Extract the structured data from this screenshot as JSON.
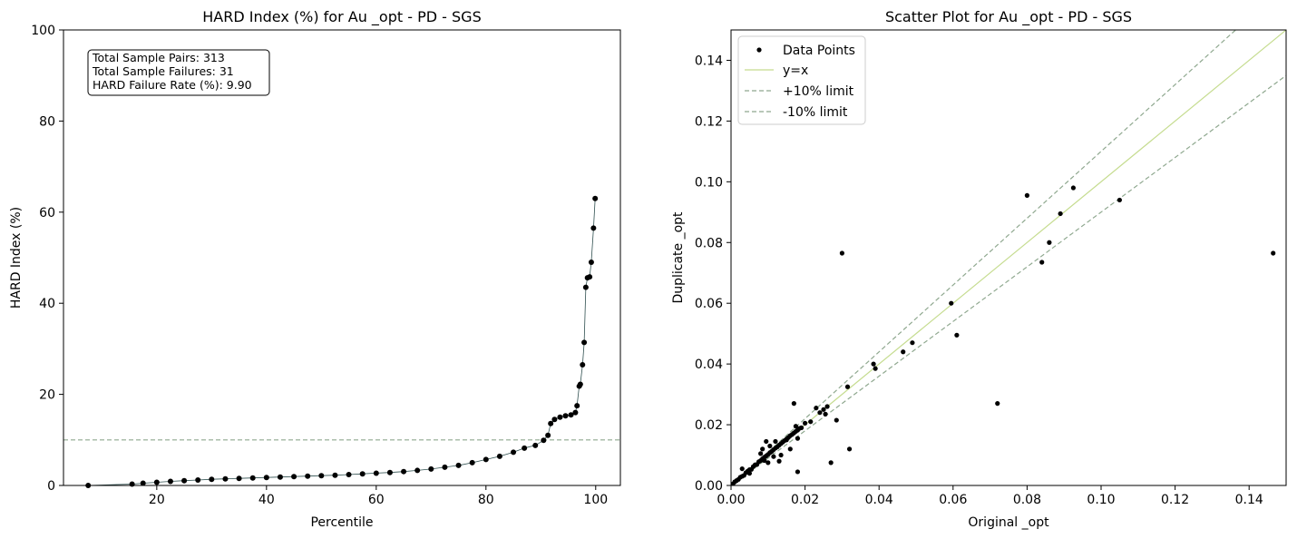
{
  "charts": {
    "hard": {
      "title": "HARD Index (%) for Au _opt - PD - SGS",
      "xlabel": "Percentile",
      "ylabel": "HARD Index (%)",
      "annotation": [
        "Total Sample Pairs: 313",
        "Total Sample Failures: 31",
        "HARD Failure Rate (%): 9.90"
      ]
    },
    "scatter": {
      "title": "Scatter Plot for Au _opt - PD - SGS",
      "xlabel": "Original _opt",
      "ylabel": "Duplicate _opt",
      "legend": [
        "Data Points",
        "y=x",
        "+10% limit",
        "-10% limit"
      ]
    }
  },
  "chart_data": [
    {
      "type": "line",
      "title": "HARD Index (%) for Au _opt - PD - SGS",
      "xlabel": "Percentile",
      "ylabel": "HARD Index (%)",
      "xlim": [
        3,
        104.5
      ],
      "ylim": [
        0,
        100
      ],
      "xticks": [
        "20",
        "40",
        "60",
        "80",
        "100"
      ],
      "xtick_values": [
        20,
        40,
        60,
        80,
        100
      ],
      "yticks": [
        "0",
        "20",
        "40",
        "60",
        "80",
        "100"
      ],
      "ytick_values": [
        0,
        20,
        40,
        60,
        80,
        100
      ],
      "threshold": 10,
      "series_color": "#2f4f4f",
      "marker_color": "#000000",
      "threshold_color": "#8fa88f",
      "points": [
        [
          7.5,
          0.0
        ],
        [
          15.5,
          0.3
        ],
        [
          17.5,
          0.5
        ],
        [
          20.0,
          0.7
        ],
        [
          22.5,
          0.9
        ],
        [
          25.0,
          1.05
        ],
        [
          27.5,
          1.2
        ],
        [
          30.0,
          1.35
        ],
        [
          32.5,
          1.45
        ],
        [
          35.0,
          1.55
        ],
        [
          37.5,
          1.65
        ],
        [
          40.0,
          1.75
        ],
        [
          42.5,
          1.85
        ],
        [
          45.0,
          1.95
        ],
        [
          47.5,
          2.05
        ],
        [
          50.0,
          2.15
        ],
        [
          52.5,
          2.25
        ],
        [
          55.0,
          2.4
        ],
        [
          57.5,
          2.55
        ],
        [
          60.0,
          2.7
        ],
        [
          62.5,
          2.85
        ],
        [
          65.0,
          3.05
        ],
        [
          67.5,
          3.3
        ],
        [
          70.0,
          3.6
        ],
        [
          72.5,
          4.0
        ],
        [
          75.0,
          4.4
        ],
        [
          77.5,
          5.0
        ],
        [
          80.0,
          5.7
        ],
        [
          82.5,
          6.4
        ],
        [
          85.0,
          7.3
        ],
        [
          87.0,
          8.2
        ],
        [
          89.0,
          8.8
        ],
        [
          90.5,
          9.9
        ],
        [
          91.3,
          11.0
        ],
        [
          91.8,
          13.6
        ],
        [
          92.5,
          14.5
        ],
        [
          93.5,
          15.0
        ],
        [
          94.5,
          15.3
        ],
        [
          95.5,
          15.5
        ],
        [
          96.3,
          16.0
        ],
        [
          96.6,
          17.5
        ],
        [
          97.0,
          21.8
        ],
        [
          97.2,
          22.2
        ],
        [
          97.6,
          26.5
        ],
        [
          97.9,
          31.4
        ],
        [
          98.2,
          43.5
        ],
        [
          98.5,
          45.6
        ],
        [
          98.9,
          45.8
        ],
        [
          99.2,
          49.0
        ],
        [
          99.6,
          56.5
        ],
        [
          99.9,
          63.0
        ]
      ]
    },
    {
      "type": "scatter",
      "title": "Scatter Plot for Au _opt - PD - SGS",
      "xlabel": "Original _opt",
      "ylabel": "Duplicate _opt",
      "xlim": [
        0,
        0.15
      ],
      "ylim": [
        0,
        0.15
      ],
      "xticks": [
        "0.00",
        "0.02",
        "0.04",
        "0.06",
        "0.08",
        "0.10",
        "0.12",
        "0.14"
      ],
      "xtick_values": [
        0,
        0.02,
        0.04,
        0.06,
        0.08,
        0.1,
        0.12,
        0.14
      ],
      "yticks": [
        "0.00",
        "0.02",
        "0.04",
        "0.06",
        "0.08",
        "0.10",
        "0.12",
        "0.14"
      ],
      "ytick_values": [
        0,
        0.02,
        0.04,
        0.06,
        0.08,
        0.1,
        0.12,
        0.14
      ],
      "legend_position": "upper-left",
      "reference_lines": [
        {
          "name": "y=x",
          "slope": 1.0,
          "color": "#c5dc8f",
          "dashed": false
        },
        {
          "name": "+10% limit",
          "slope": 1.1,
          "color": "#8fa88f",
          "dashed": true
        },
        {
          "name": "-10% limit",
          "slope": 0.9,
          "color": "#8fa88f",
          "dashed": true
        }
      ],
      "series": [
        {
          "name": "Data Points",
          "color": "#000000",
          "points": [
            [
              0.0005,
              0.0005
            ],
            [
              0.001,
              0.0012
            ],
            [
              0.0015,
              0.0016
            ],
            [
              0.002,
              0.002
            ],
            [
              0.0025,
              0.0027
            ],
            [
              0.003,
              0.003
            ],
            [
              0.0035,
              0.0033
            ],
            [
              0.004,
              0.0042
            ],
            [
              0.0045,
              0.0047
            ],
            [
              0.005,
              0.0052
            ],
            [
              0.0055,
              0.0053
            ],
            [
              0.006,
              0.0062
            ],
            [
              0.0065,
              0.0068
            ],
            [
              0.007,
              0.0069
            ],
            [
              0.0075,
              0.0078
            ],
            [
              0.008,
              0.0082
            ],
            [
              0.0085,
              0.0088
            ],
            [
              0.009,
              0.0093
            ],
            [
              0.0095,
              0.0097
            ],
            [
              0.01,
              0.0102
            ],
            [
              0.0105,
              0.0108
            ],
            [
              0.011,
              0.0112
            ],
            [
              0.0115,
              0.0118
            ],
            [
              0.012,
              0.0123
            ],
            [
              0.0125,
              0.0127
            ],
            [
              0.013,
              0.0133
            ],
            [
              0.0135,
              0.0138
            ],
            [
              0.014,
              0.0143
            ],
            [
              0.0145,
              0.0148
            ],
            [
              0.015,
              0.0153
            ],
            [
              0.0155,
              0.0158
            ],
            [
              0.016,
              0.0164
            ],
            [
              0.0165,
              0.0168
            ],
            [
              0.017,
              0.0173
            ],
            [
              0.0175,
              0.0178
            ],
            [
              0.018,
              0.0182
            ],
            [
              0.0185,
              0.0188
            ],
            [
              0.019,
              0.019
            ],
            [
              0.02,
              0.0205
            ],
            [
              0.003,
              0.0055
            ],
            [
              0.005,
              0.004
            ],
            [
              0.008,
              0.0105
            ],
            [
              0.0085,
              0.012
            ],
            [
              0.009,
              0.0082
            ],
            [
              0.0095,
              0.0145
            ],
            [
              0.01,
              0.0075
            ],
            [
              0.0105,
              0.013
            ],
            [
              0.0115,
              0.0095
            ],
            [
              0.012,
              0.0145
            ],
            [
              0.013,
              0.008
            ],
            [
              0.0135,
              0.01
            ],
            [
              0.015,
              0.015
            ],
            [
              0.016,
              0.012
            ],
            [
              0.017,
              0.027
            ],
            [
              0.0175,
              0.0195
            ],
            [
              0.018,
              0.0045
            ],
            [
              0.018,
              0.0155
            ],
            [
              0.019,
              0.019
            ],
            [
              0.0215,
              0.021
            ],
            [
              0.023,
              0.0255
            ],
            [
              0.024,
              0.024
            ],
            [
              0.025,
              0.025
            ],
            [
              0.0255,
              0.0235
            ],
            [
              0.026,
              0.026
            ],
            [
              0.027,
              0.0075
            ],
            [
              0.0285,
              0.0215
            ],
            [
              0.03,
              0.0765
            ],
            [
              0.0315,
              0.0325
            ],
            [
              0.032,
              0.012
            ],
            [
              0.0385,
              0.04
            ],
            [
              0.039,
              0.0385
            ],
            [
              0.0465,
              0.044
            ],
            [
              0.049,
              0.047
            ],
            [
              0.0595,
              0.06
            ],
            [
              0.061,
              0.0495
            ],
            [
              0.072,
              0.027
            ],
            [
              0.08,
              0.0955
            ],
            [
              0.084,
              0.0735
            ],
            [
              0.086,
              0.08
            ],
            [
              0.089,
              0.0895
            ],
            [
              0.0925,
              0.098
            ],
            [
              0.105,
              0.094
            ],
            [
              0.1465,
              0.0765
            ]
          ]
        }
      ]
    }
  ]
}
